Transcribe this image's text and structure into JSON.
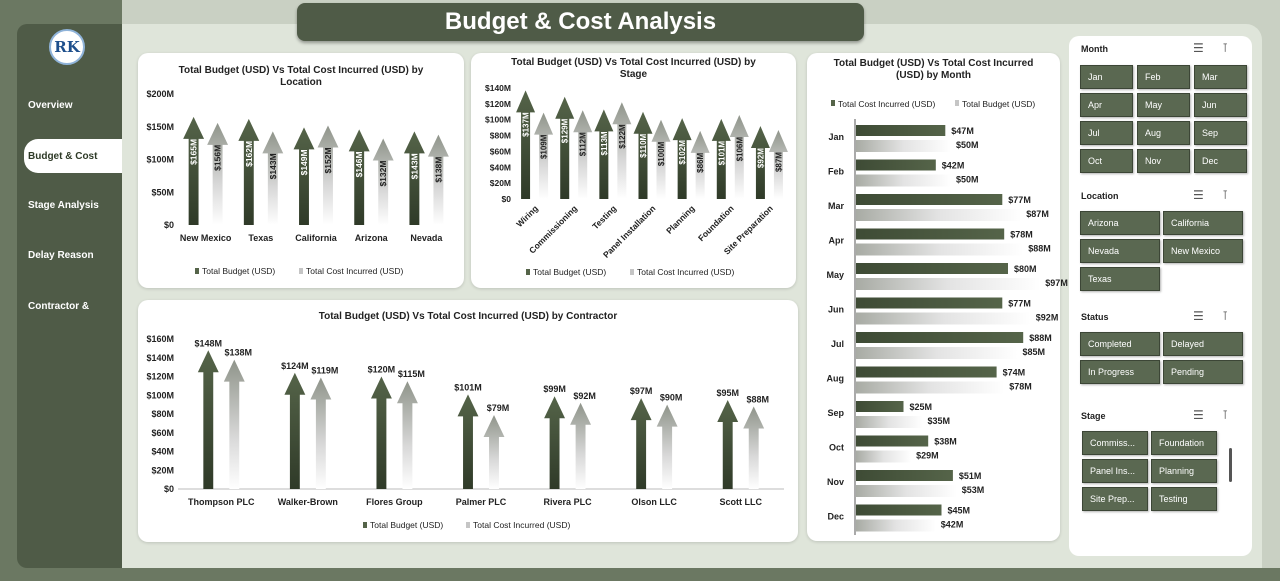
{
  "title": "Budget & Cost Analysis",
  "logo_text": "RK",
  "nav": [
    "Overview",
    "Budget & Cost",
    "Stage Analysis",
    "Delay Reason",
    "Contractor &"
  ],
  "legend": {
    "budget": "Total Budget (USD)",
    "cost": "Total Cost Incurred (USD)"
  },
  "chart_data": [
    {
      "type": "bar",
      "title": "Total Budget (USD) Vs Total Cost Incurred (USD) by Location",
      "categories": [
        "New Mexico",
        "Texas",
        "California",
        "Arizona",
        "Nevada"
      ],
      "series": [
        {
          "name": "Total Budget (USD)",
          "values": [
            165,
            162,
            149,
            146,
            143
          ],
          "labels": [
            "$165M",
            "$162M",
            "$149M",
            "$146M",
            "$143M"
          ]
        },
        {
          "name": "Total Cost Incurred (USD)",
          "values": [
            156,
            143,
            152,
            132,
            138
          ],
          "labels": [
            "$156M",
            "$143M",
            "$152M",
            "$132M",
            "$138M"
          ]
        }
      ],
      "ylim": [
        0,
        200
      ],
      "yticks": [
        "$0",
        "$50M",
        "$100M",
        "$150M",
        "$200M"
      ],
      "legend_position": "bottom"
    },
    {
      "type": "bar",
      "title": "Total Budget (USD) Vs Total Cost Incurred (USD) by Stage",
      "categories": [
        "Wiring",
        "Commissioning",
        "Testing",
        "Panel Installation",
        "Planning",
        "Foundation",
        "Site Preparation"
      ],
      "series": [
        {
          "name": "Total Budget (USD)",
          "values": [
            137,
            129,
            113,
            110,
            102,
            101,
            92
          ],
          "labels": [
            "$137M",
            "$129M",
            "$113M",
            "$110M",
            "$102M",
            "$101M",
            "$92M"
          ]
        },
        {
          "name": "Total Cost Incurred (USD)",
          "values": [
            109,
            112,
            122,
            100,
            86,
            106,
            87
          ],
          "labels": [
            "$109M",
            "$112M",
            "$122M",
            "$100M",
            "$86M",
            "$106M",
            "$87M"
          ]
        }
      ],
      "ylim": [
        0,
        140
      ],
      "yticks": [
        "$0",
        "$20M",
        "$40M",
        "$60M",
        "$80M",
        "$100M",
        "$120M",
        "$140M"
      ],
      "legend_position": "bottom"
    },
    {
      "type": "bar",
      "title": "Total Budget (USD) Vs Total Cost Incurred (USD) by Month",
      "orientation": "horizontal",
      "categories": [
        "Jan",
        "Feb",
        "Mar",
        "Apr",
        "May",
        "Jun",
        "Jul",
        "Aug",
        "Sep",
        "Oct",
        "Nov",
        "Dec"
      ],
      "series": [
        {
          "name": "Total Cost Incurred (USD)",
          "values": [
            47,
            42,
            77,
            78,
            80,
            77,
            88,
            74,
            25,
            38,
            51,
            45
          ],
          "labels": [
            "$47M",
            "$42M",
            "$77M",
            "$78M",
            "$80M",
            "$77M",
            "$88M",
            "$74M",
            "$25M",
            "$38M",
            "$51M",
            "$45M"
          ]
        },
        {
          "name": "Total Budget (USD)",
          "values": [
            50,
            50,
            87,
            88,
            97,
            92,
            85,
            78,
            35,
            29,
            53,
            42
          ],
          "labels": [
            "$50M",
            "$50M",
            "$87M",
            "$88M",
            "$97M",
            "$92M",
            "$85M",
            "$78M",
            "$35M",
            "$29M",
            "$53M",
            "$42M"
          ]
        }
      ],
      "legend_position": "top"
    },
    {
      "type": "bar",
      "title": "Total Budget (USD) Vs Total Cost Incurred (USD) by Contractor",
      "categories": [
        "Thompson PLC",
        "Walker-Brown",
        "Flores Group",
        "Palmer PLC",
        "Rivera PLC",
        "Olson LLC",
        "Scott LLC"
      ],
      "series": [
        {
          "name": "Total Budget (USD)",
          "values": [
            148,
            124,
            120,
            101,
            99,
            97,
            95
          ],
          "labels": [
            "$148M",
            "$124M",
            "$120M",
            "$101M",
            "$99M",
            "$97M",
            "$95M"
          ]
        },
        {
          "name": "Total Cost Incurred (USD)",
          "values": [
            138,
            119,
            115,
            79,
            92,
            90,
            88
          ],
          "labels": [
            "$138M",
            "$119M",
            "$115M",
            "$79M",
            "$92M",
            "$90M",
            "$88M"
          ]
        }
      ],
      "ylim": [
        0,
        160
      ],
      "yticks": [
        "$0",
        "$20M",
        "$40M",
        "$60M",
        "$80M",
        "$100M",
        "$120M",
        "$140M",
        "$160M"
      ],
      "legend_position": "bottom"
    }
  ],
  "slicers": {
    "month": {
      "title": "Month",
      "items": [
        "Jan",
        "Feb",
        "Mar",
        "Apr",
        "May",
        "Jun",
        "Jul",
        "Aug",
        "Sep",
        "Oct",
        "Nov",
        "Dec"
      ]
    },
    "location": {
      "title": "Location",
      "items": [
        "Arizona",
        "California",
        "Nevada",
        "New Mexico",
        "Texas"
      ]
    },
    "status": {
      "title": "Status",
      "items": [
        "Completed",
        "Delayed",
        "In Progress",
        "Pending"
      ]
    },
    "stage": {
      "title": "Stage",
      "items": [
        "Commiss...",
        "Foundation",
        "Panel Ins...",
        "Planning",
        "Site Prep...",
        "Testing"
      ]
    }
  },
  "colors": {
    "budget": "#556449",
    "cost": "#b8b8b8",
    "sidebar": "#4f5b47",
    "slicer_button": "#5a6851"
  }
}
